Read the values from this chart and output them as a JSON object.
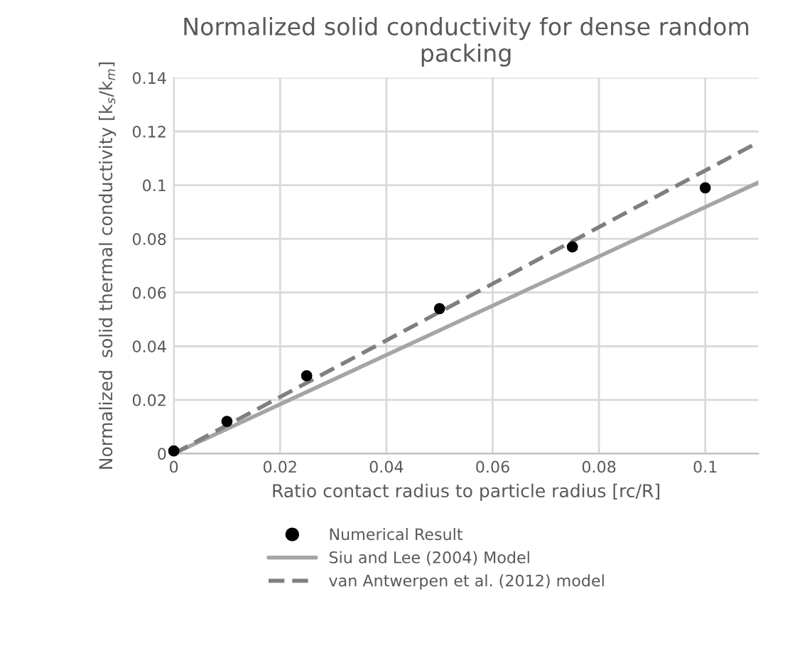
{
  "chart_data": {
    "type": "scatter",
    "title": "Normalized solid conductivity for dense random packing",
    "xlabel": "Ratio contact radius to particle radius [rc/R]",
    "ylabel": "Normalized  solid thermal conductivity [k$_{s}$/k$_{m}$]",
    "series": [
      {
        "name": "Numerical Result",
        "color": "#000000",
        "marker": "circle",
        "x": [
          0,
          0.01,
          0.025,
          0.05,
          0.075,
          0.1
        ],
        "values": [
          0.001,
          0.012,
          0.029,
          0.054,
          0.077,
          0.099
        ]
      },
      {
        "name": "Siu and Lee (2004) Model",
        "type": "line",
        "color": "#a5a5a5",
        "line_style": "solid",
        "x": [
          0,
          0.11
        ],
        "values": [
          0,
          0.101
        ]
      },
      {
        "name": "van Antwerpen et al. (2012) model",
        "type": "line",
        "color": "#7f7f7f",
        "line_style": "dashed",
        "x": [
          0,
          0.11
        ],
        "values": [
          0,
          0.116
        ]
      }
    ],
    "xlim": [
      0,
      0.11
    ],
    "xticks": [
      0,
      0.02,
      0.04,
      0.06,
      0.08,
      0.1
    ],
    "ylim": [
      0,
      0.14
    ],
    "yticks": [
      0,
      0.02,
      0.04,
      0.06,
      0.08,
      0.1,
      0.12,
      0.14
    ],
    "grid": true,
    "legend": "bottom"
  }
}
